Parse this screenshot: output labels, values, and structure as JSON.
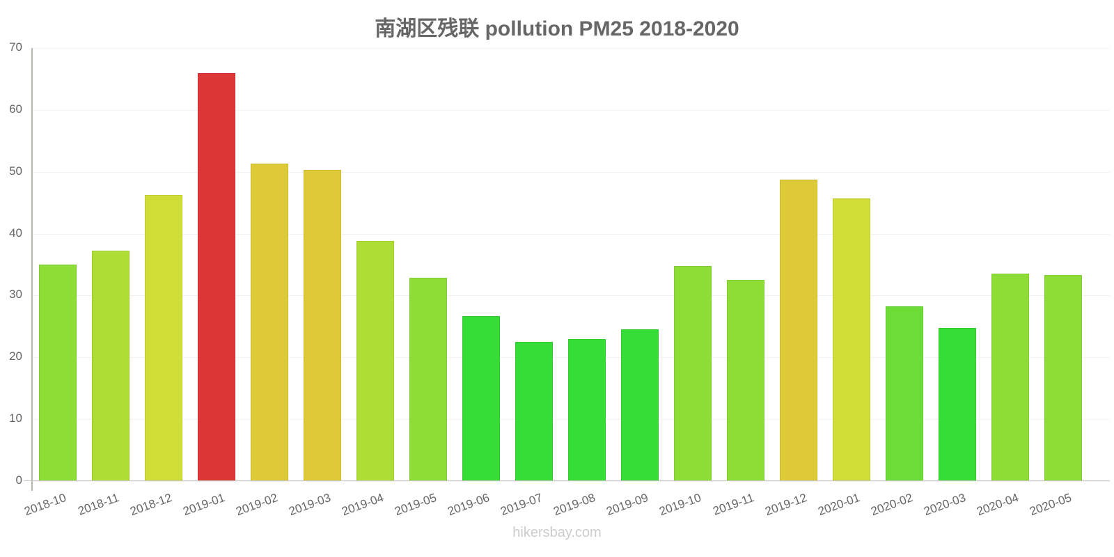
{
  "title": "南湖区残联 pollution PM25 2018-2020",
  "watermark": "hikersbay.com",
  "chart_data": {
    "type": "bar",
    "title": "南湖区残联 pollution PM25 2018-2020",
    "xlabel": "",
    "ylabel": "",
    "ylim": [
      0,
      70
    ],
    "yticks": [
      0,
      10,
      20,
      30,
      40,
      50,
      60,
      70
    ],
    "grid": true,
    "legend": null,
    "categories": [
      "2018-10",
      "2018-11",
      "2018-12",
      "2019-01",
      "2019-02",
      "2019-03",
      "2019-04",
      "2019-05",
      "2019-06",
      "2019-07",
      "2019-08",
      "2019-09",
      "2019-10",
      "2019-11",
      "2019-12",
      "2020-01",
      "2020-02",
      "2020-03",
      "2020-04",
      "2020-05"
    ],
    "values": [
      35.0,
      37.2,
      46.3,
      65.9,
      51.3,
      50.3,
      38.8,
      32.9,
      26.7,
      22.5,
      23.0,
      24.5,
      34.8,
      32.5,
      48.7,
      45.7,
      28.2,
      24.8,
      33.5,
      33.3
    ],
    "colors": [
      "#8ddd36",
      "#aedd36",
      "#cfdd36",
      "#dd3636",
      "#ddca36",
      "#ddca36",
      "#aedd36",
      "#8ddd36",
      "#36dd36",
      "#36dd36",
      "#36dd36",
      "#36dd36",
      "#8ddd36",
      "#8ddd36",
      "#ddca36",
      "#cfdd36",
      "#6cdd36",
      "#36dd36",
      "#8ddd36",
      "#8ddd36"
    ]
  }
}
